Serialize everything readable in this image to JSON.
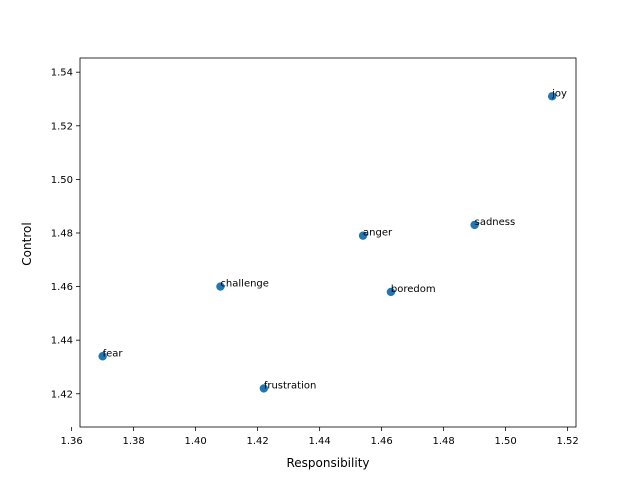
{
  "chart_data": {
    "type": "scatter",
    "title": "",
    "xlabel": "Responsibility",
    "ylabel": "Control",
    "xlim": [
      1.3627,
      1.5227
    ],
    "ylim": [
      1.4076,
      1.5453
    ],
    "xticks": [
      1.36,
      1.38,
      1.4,
      1.42,
      1.44,
      1.46,
      1.48,
      1.5,
      1.52
    ],
    "yticks": [
      1.42,
      1.44,
      1.46,
      1.48,
      1.5,
      1.52,
      1.54
    ],
    "grid": false,
    "legend": "none",
    "marker_color": "#1f77b4",
    "points": [
      {
        "label": "joy",
        "x": 1.515,
        "y": 1.531
      },
      {
        "label": "sadness",
        "x": 1.49,
        "y": 1.483
      },
      {
        "label": "anger",
        "x": 1.454,
        "y": 1.479
      },
      {
        "label": "challenge",
        "x": 1.408,
        "y": 1.46
      },
      {
        "label": "boredom",
        "x": 1.463,
        "y": 1.458
      },
      {
        "label": "fear",
        "x": 1.37,
        "y": 1.434
      },
      {
        "label": "frustration",
        "x": 1.422,
        "y": 1.422
      }
    ]
  }
}
